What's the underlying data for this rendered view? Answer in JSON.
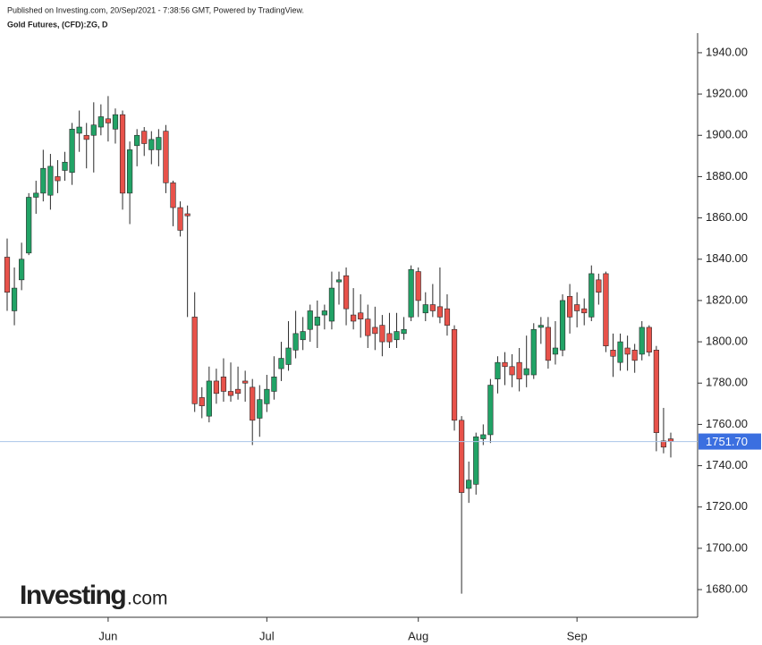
{
  "header": {
    "published": "Published on Investing.com, 20/Sep/2021 - 7:38:56 GMT, Powered by TradingView.",
    "instrument": "Gold Futures, (CFD):ZG, D"
  },
  "logo": {
    "brand": "Investing",
    "suffix": ".com"
  },
  "chart_data": {
    "type": "candlestick",
    "categories": [
      null,
      null,
      null,
      null,
      null,
      null,
      null,
      null,
      null,
      null,
      null,
      null,
      null,
      null,
      "Jun",
      null,
      null,
      null,
      null,
      null,
      null,
      null,
      null,
      null,
      null,
      null,
      null,
      null,
      null,
      null,
      null,
      null,
      null,
      null,
      null,
      null,
      "Jul",
      null,
      null,
      null,
      null,
      null,
      null,
      null,
      null,
      null,
      null,
      null,
      null,
      null,
      null,
      null,
      null,
      null,
      null,
      null,
      null,
      "Aug",
      null,
      null,
      null,
      null,
      null,
      null,
      null,
      null,
      null,
      null,
      null,
      null,
      null,
      null,
      null,
      null,
      null,
      null,
      null,
      null,
      null,
      "Sep",
      null,
      null,
      null,
      null,
      null,
      null,
      null,
      null,
      null,
      null,
      null,
      null,
      null
    ],
    "open": [
      1841,
      1815,
      1830,
      1843,
      1870,
      1872,
      1871,
      1880,
      1883,
      1882,
      1901,
      1900,
      1900,
      1904,
      1908,
      1903,
      1910,
      1872,
      1895,
      1902,
      1893,
      1893,
      1902,
      1877,
      1865,
      1862,
      1812,
      1773,
      1764,
      1781,
      1783,
      1776,
      1777,
      1781,
      1778,
      1763,
      1770,
      1776,
      1787,
      1789,
      1796,
      1801,
      1806,
      1808,
      1813,
      1810,
      1829,
      1832,
      1813,
      1814,
      1811,
      1807,
      1808,
      1804,
      1801,
      1804,
      1812,
      1834,
      1814,
      1818,
      1817,
      1816,
      1806,
      1762,
      1729,
      1731,
      1753,
      1755,
      1782,
      1790,
      1788,
      1790,
      1784,
      1784,
      1807,
      1807,
      1794,
      1796,
      1822,
      1818,
      1816,
      1812,
      1830,
      1833,
      1796,
      1790,
      1797,
      1796,
      1794,
      1807,
      1796,
      1752,
      1753
    ],
    "high": [
      1850,
      1836,
      1848,
      1872,
      1878,
      1893,
      1891,
      1888,
      1892,
      1906,
      1912,
      1906,
      1916,
      1915,
      1919,
      1913,
      1912,
      1897,
      1903,
      1904,
      1902,
      1903,
      1905,
      1878,
      1868,
      1866,
      1824,
      1778,
      1788,
      1787,
      1792,
      1790,
      1788,
      1786,
      1782,
      1779,
      1784,
      1793,
      1800,
      1810,
      1815,
      1812,
      1818,
      1820,
      1818,
      1834,
      1834,
      1836,
      1826,
      1823,
      1818,
      1817,
      1813,
      1814,
      1814,
      1812,
      1837,
      1836,
      1824,
      1828,
      1836,
      1823,
      1808,
      1764,
      1742,
      1756,
      1760,
      1782,
      1793,
      1795,
      1794,
      1797,
      1803,
      1809,
      1812,
      1812,
      1810,
      1823,
      1828,
      1824,
      1821,
      1837,
      1833,
      1834,
      1804,
      1804,
      1803,
      1799,
      1810,
      1808,
      1798,
      1768,
      1756
    ],
    "low": [
      1815,
      1808,
      1825,
      1842,
      1862,
      1868,
      1864,
      1872,
      1878,
      1876,
      1892,
      1884,
      1882,
      1900,
      1897,
      1896,
      1864,
      1857,
      1885,
      1890,
      1886,
      1885,
      1872,
      1856,
      1851,
      1812,
      1766,
      1763,
      1761,
      1770,
      1771,
      1771,
      1772,
      1771,
      1750,
      1754,
      1766,
      1772,
      1781,
      1786,
      1792,
      1796,
      1800,
      1797,
      1806,
      1806,
      1818,
      1808,
      1806,
      1802,
      1797,
      1796,
      1793,
      1797,
      1797,
      1801,
      1810,
      1812,
      1810,
      1812,
      1809,
      1803,
      1757,
      1678,
      1722,
      1726,
      1750,
      1751,
      1775,
      1779,
      1778,
      1776,
      1778,
      1782,
      1799,
      1787,
      1789,
      1793,
      1804,
      1807,
      1808,
      1810,
      1818,
      1795,
      1783,
      1786,
      1786,
      1785,
      1791,
      1793,
      1747,
      1746,
      1744
    ],
    "close": [
      1824,
      1826,
      1840,
      1870,
      1872,
      1884,
      1885,
      1878,
      1887,
      1903,
      1904,
      1898,
      1905,
      1909,
      1906,
      1910,
      1872,
      1893,
      1900,
      1896,
      1898,
      1899,
      1877,
      1865,
      1854,
      1861,
      1770,
      1769,
      1781,
      1775,
      1776,
      1774,
      1775,
      1780,
      1762,
      1772,
      1777,
      1783,
      1792,
      1797,
      1804,
      1805,
      1815,
      1812,
      1815,
      1826,
      1830,
      1816,
      1810,
      1811,
      1803,
      1804,
      1800,
      1800,
      1805,
      1806,
      1835,
      1820,
      1818,
      1815,
      1812,
      1808,
      1762,
      1727,
      1733,
      1754,
      1755,
      1779,
      1790,
      1788,
      1784,
      1782,
      1787,
      1806,
      1808,
      1791,
      1797,
      1820,
      1812,
      1815,
      1814,
      1833,
      1824,
      1798,
      1793,
      1800,
      1794,
      1791,
      1807,
      1795,
      1756,
      1749,
      1751.7
    ],
    "up_color": "#21a366",
    "down_color": "#e8524a",
    "last_price": {
      "value": 1751.7,
      "label": "1751.70"
    },
    "last_price_color": "#3b6fe0",
    "ylim": [
      1666.6,
      1949.5
    ],
    "yticks": [
      {
        "value": 1680,
        "label": "1680.00"
      },
      {
        "value": 1700,
        "label": "1700.00"
      },
      {
        "value": 1720,
        "label": "1720.00"
      },
      {
        "value": 1740,
        "label": "1740.00"
      },
      {
        "value": 1760,
        "label": "1760.00"
      },
      {
        "value": 1780,
        "label": "1780.00"
      },
      {
        "value": 1800,
        "label": "1800.00"
      },
      {
        "value": 1820,
        "label": "1820.00"
      },
      {
        "value": 1840,
        "label": "1840.00"
      },
      {
        "value": 1860,
        "label": "1860.00"
      },
      {
        "value": 1880,
        "label": "1880.00"
      },
      {
        "value": 1900,
        "label": "1900.00"
      },
      {
        "value": 1920,
        "label": "1920.00"
      },
      {
        "value": 1940,
        "label": "1940.00"
      }
    ]
  }
}
